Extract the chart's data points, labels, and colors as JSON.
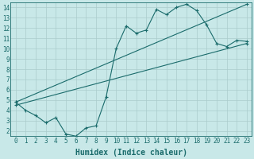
{
  "xlabel": "Humidex (Indice chaleur)",
  "bg_color": "#c8e8e8",
  "line_color": "#1a6b6b",
  "xlim": [
    -0.5,
    23.5
  ],
  "ylim": [
    1.5,
    14.5
  ],
  "xticks": [
    0,
    1,
    2,
    3,
    4,
    5,
    6,
    7,
    8,
    9,
    10,
    11,
    12,
    13,
    14,
    15,
    16,
    17,
    18,
    19,
    20,
    21,
    22,
    23
  ],
  "yticks": [
    2,
    3,
    4,
    5,
    6,
    7,
    8,
    9,
    10,
    11,
    12,
    13,
    14
  ],
  "line1_x": [
    0,
    1,
    2,
    3,
    4,
    5,
    6,
    7,
    8,
    9,
    10,
    11,
    12,
    13,
    14,
    15,
    16,
    17,
    18,
    19,
    20,
    21,
    22,
    23
  ],
  "line1_y": [
    4.8,
    4.0,
    3.5,
    2.8,
    3.3,
    1.7,
    1.5,
    2.3,
    2.5,
    5.3,
    10.0,
    12.2,
    11.5,
    11.8,
    13.8,
    13.3,
    14.0,
    14.3,
    13.7,
    12.3,
    10.5,
    10.2,
    10.8,
    10.7
  ],
  "line2_x": [
    0,
    23
  ],
  "line2_y": [
    4.5,
    10.5
  ],
  "line3_x": [
    0,
    23
  ],
  "line3_y": [
    4.8,
    14.3
  ],
  "grid_color": "#aacccc",
  "tick_fontsize": 5.5,
  "label_fontsize": 7
}
